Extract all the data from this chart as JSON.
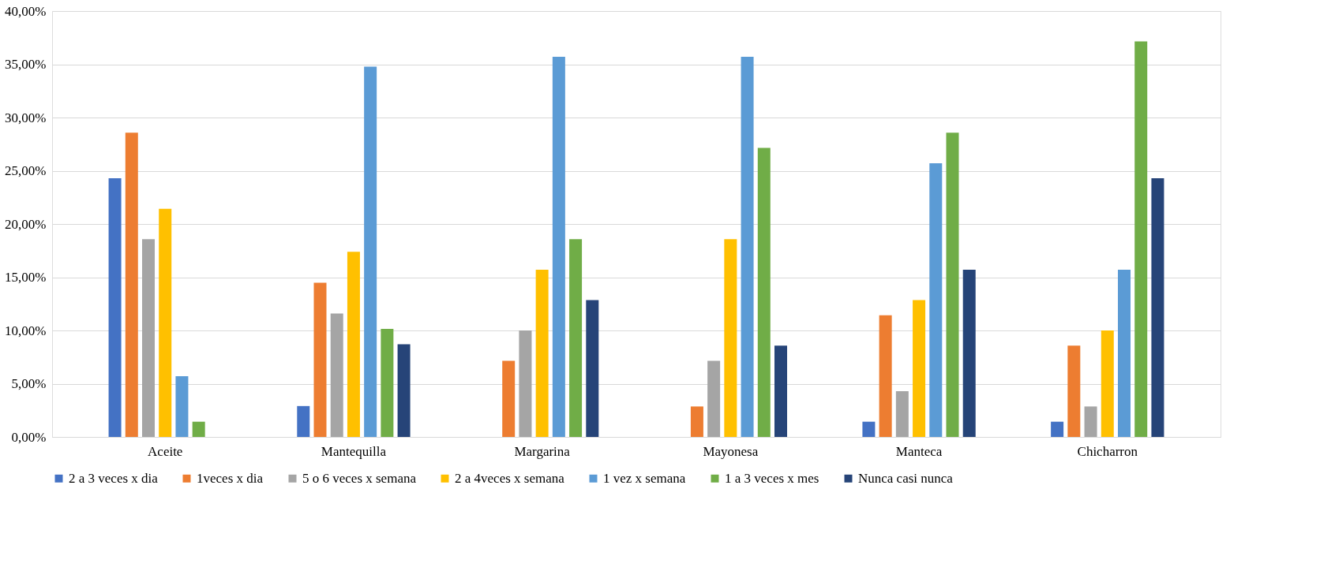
{
  "chart_data": {
    "type": "bar",
    "categories": [
      "Aceite",
      "Mantequilla",
      "Margarina",
      "Mayonesa",
      "Manteca",
      "Chicharron"
    ],
    "series": [
      {
        "name": "2 a 3 veces x dia",
        "color": "#4472c4",
        "values": [
          24.29,
          2.9,
          0,
          0,
          1.43,
          1.43
        ]
      },
      {
        "name": "1veces x dia",
        "color": "#ed7d31",
        "values": [
          28.57,
          14.49,
          7.14,
          2.86,
          11.43,
          8.57
        ]
      },
      {
        "name": "5 o 6 veces x semana",
        "color": "#a5a5a5",
        "values": [
          18.57,
          11.59,
          10.0,
          7.14,
          4.29,
          2.86
        ]
      },
      {
        "name": "2 a 4veces x semana",
        "color": "#ffc000",
        "values": [
          21.43,
          17.39,
          15.71,
          18.57,
          12.86,
          10.0
        ]
      },
      {
        "name": "1 vez x semana",
        "color": "#5b9bd5",
        "values": [
          5.71,
          34.78,
          35.71,
          35.71,
          25.71,
          15.71
        ]
      },
      {
        "name": "1 a 3 veces x mes",
        "color": "#70ad47",
        "values": [
          1.43,
          10.14,
          18.57,
          27.14,
          28.57,
          37.14
        ]
      },
      {
        "name": "Nunca casi nunca",
        "color": "#264478",
        "values": [
          0,
          8.7,
          12.86,
          8.57,
          15.71,
          24.29
        ]
      }
    ],
    "ylim": [
      0,
      40
    ],
    "yticks": [
      {
        "value": 0,
        "label": "0,00%"
      },
      {
        "value": 5,
        "label": "5,00%"
      },
      {
        "value": 10,
        "label": "10,00%"
      },
      {
        "value": 15,
        "label": "15,00%"
      },
      {
        "value": 20,
        "label": "20,00%"
      },
      {
        "value": 25,
        "label": "25,00%"
      },
      {
        "value": 30,
        "label": "30,00%"
      },
      {
        "value": 35,
        "label": "35,00%"
      },
      {
        "value": 40,
        "label": "40,00%"
      }
    ],
    "grid": "y",
    "legend": "bottom"
  }
}
